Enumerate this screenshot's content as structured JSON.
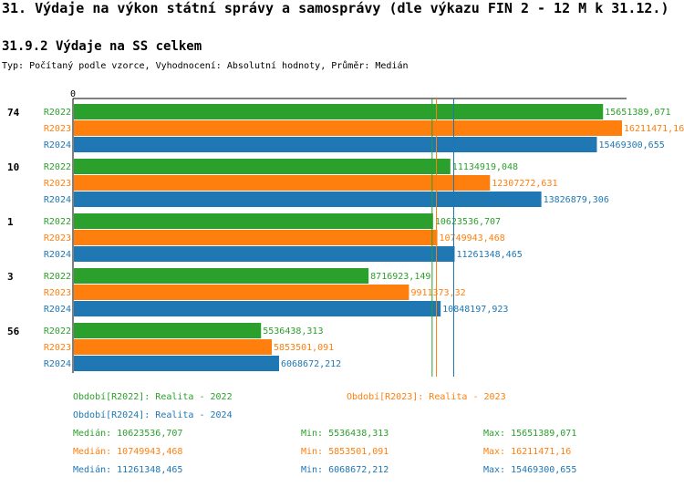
{
  "header": {
    "title": "31. Výdaje na výkon státní správy a samosprávy (dle výkazu FIN 2 - 12 M k 31.12.)",
    "subtitle": "31.9.2 Výdaje na SS celkem",
    "description": "Typ: Počítaný podle vzorce, Vyhodnocení: Absolutní hodnoty, Průměr: Medián"
  },
  "colors": {
    "R2022": "#2ca02c",
    "R2023": "#ff7f0e",
    "R2024": "#1f77b4"
  },
  "chart_data": {
    "type": "bar",
    "orientation": "horizontal",
    "x_axis_tick": "0",
    "xlim": [
      0,
      16211471.16
    ],
    "series_names": [
      "R2022",
      "R2023",
      "R2024"
    ],
    "groups": [
      {
        "label": "74",
        "values": [
          15651389.071,
          16211471.16,
          15469300.655
        ],
        "labels": [
          "15651389,071",
          "16211471,16",
          "15469300,655"
        ]
      },
      {
        "label": "10",
        "values": [
          11134919.048,
          12307272.631,
          13826879.306
        ],
        "labels": [
          "11134919,048",
          "12307272,631",
          "13826879,306"
        ]
      },
      {
        "label": "1",
        "values": [
          10623536.707,
          10749943.468,
          11261348.465
        ],
        "labels": [
          "10623536,707",
          "10749943,468",
          "11261348,465"
        ]
      },
      {
        "label": "3",
        "values": [
          8716923.149,
          9911373.32,
          10848197.923
        ],
        "labels": [
          "8716923,149",
          "9911373,32",
          "10848197,923"
        ]
      },
      {
        "label": "56",
        "values": [
          5536438.313,
          5853501.091,
          6068672.212
        ],
        "labels": [
          "5536438,313",
          "5853501,091",
          "6068672,212"
        ]
      }
    ],
    "medians": [
      10623536.707,
      10749943.468,
      11261348.465
    ]
  },
  "legend": {
    "period_labels": [
      "Období[R2022]: Realita - 2022",
      "Období[R2023]: Realita - 2023",
      "Období[R2024]: Realita - 2024"
    ],
    "stats": [
      {
        "median": "Medián: 10623536,707",
        "min": "Min: 5536438,313",
        "max": "Max: 15651389,071"
      },
      {
        "median": "Medián: 10749943,468",
        "min": "Min: 5853501,091",
        "max": "Max: 16211471,16"
      },
      {
        "median": "Medián: 11261348,465",
        "min": "Min: 6068672,212",
        "max": "Max: 15469300,655"
      }
    ]
  }
}
